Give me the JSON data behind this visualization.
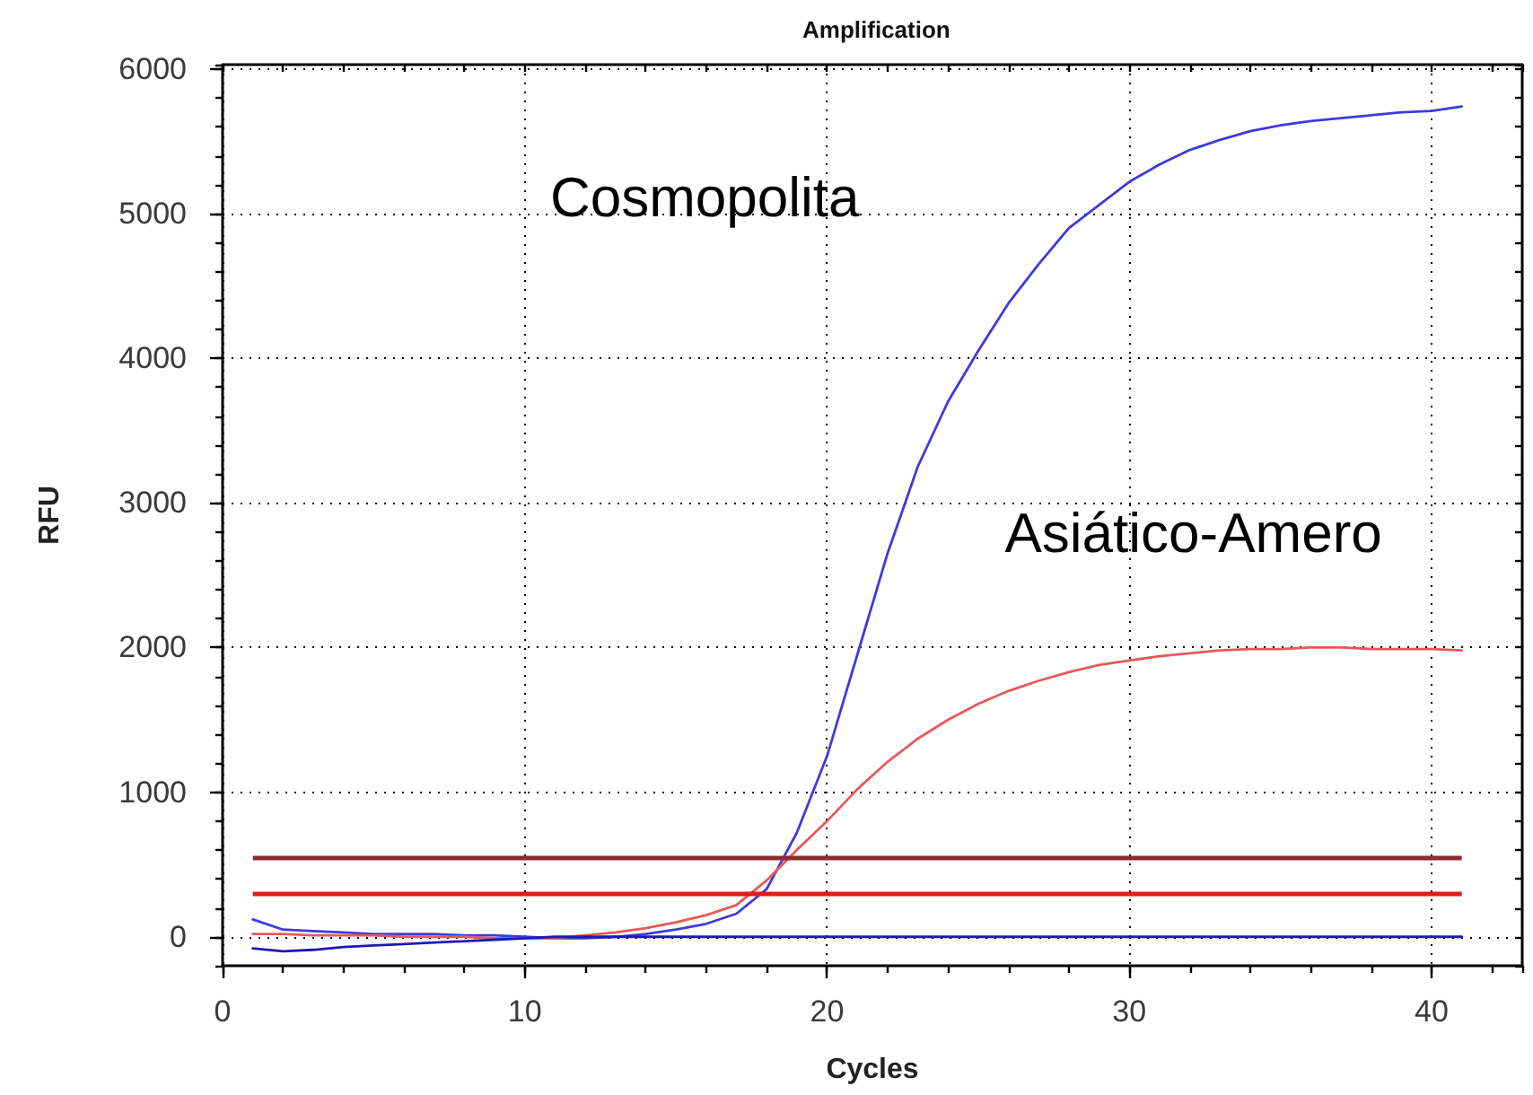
{
  "chart_data": {
    "type": "line",
    "title": "Amplification",
    "xlabel": "Cycles",
    "ylabel": "RFU",
    "x": [
      1,
      2,
      3,
      4,
      5,
      6,
      7,
      8,
      9,
      10,
      11,
      12,
      13,
      14,
      15,
      16,
      17,
      18,
      19,
      20,
      21,
      22,
      23,
      24,
      25,
      26,
      27,
      28,
      29,
      30,
      31,
      32,
      33,
      34,
      35,
      36,
      37,
      38,
      39,
      40,
      41
    ],
    "series": [
      {
        "name": "Cosmopolita",
        "color": "#3c3cdc",
        "values": [
          120,
          50,
          40,
          30,
          20,
          20,
          20,
          10,
          10,
          0,
          -10,
          -10,
          0,
          20,
          50,
          90,
          160,
          330,
          720,
          1250,
          1950,
          2650,
          3250,
          3700,
          4050,
          4380,
          4650,
          4900,
          5060,
          5220,
          5340,
          5440,
          5510,
          5570,
          5610,
          5640,
          5660,
          5680,
          5700,
          5710,
          5740
        ]
      },
      {
        "name": "Asiático-Amero",
        "color": "#e8585a",
        "values": [
          20,
          20,
          10,
          10,
          10,
          0,
          0,
          0,
          -10,
          -10,
          -10,
          10,
          30,
          60,
          100,
          150,
          220,
          390,
          600,
          800,
          1020,
          1210,
          1370,
          1500,
          1610,
          1700,
          1770,
          1830,
          1880,
          1910,
          1940,
          1960,
          1980,
          1990,
          1990,
          2000,
          2000,
          1990,
          1990,
          1990,
          1980
        ]
      },
      {
        "color": "#1a1ab4",
        "values": [
          -80,
          -100,
          -90,
          -70,
          -60,
          -50,
          -40,
          -30,
          -20,
          -10,
          0,
          0,
          0,
          0,
          0,
          0,
          0,
          0,
          0,
          0,
          0,
          0,
          0,
          0,
          0,
          0,
          0,
          0,
          0,
          0,
          0,
          0,
          0,
          0,
          0,
          0,
          0,
          0,
          0,
          0,
          0
        ]
      }
    ],
    "xlim": [
      0,
      43
    ],
    "ylim": [
      -200,
      6030
    ],
    "xticks": [
      0,
      10,
      20,
      30,
      40
    ],
    "yticks": [
      0,
      1000,
      2000,
      3000,
      4000,
      5000,
      6000
    ],
    "grid": true,
    "marker": "none",
    "ref_lines": [
      {
        "axis": "y",
        "value": 550,
        "color": "#8b2d2d"
      },
      {
        "axis": "y",
        "value": 300,
        "color": "#e31b1b"
      }
    ]
  }
}
